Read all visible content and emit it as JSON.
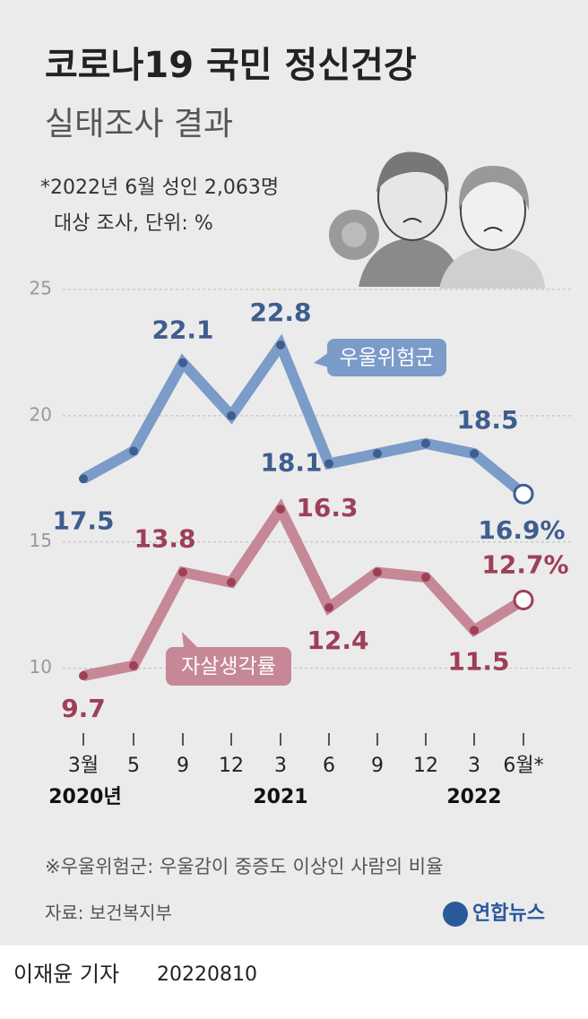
{
  "header": {
    "title": "코로나19 국민 정신건강",
    "subtitle": "실태조사 결과",
    "note": [
      "*2022년 6월 성인 2,063명",
      "대상 조사, 단위: %"
    ]
  },
  "chart_data": {
    "type": "line",
    "categories": [
      "3월",
      "5",
      "9",
      "12",
      "3",
      "6",
      "9",
      "12",
      "3",
      "6월*"
    ],
    "years": [
      "2020년",
      "2021",
      "2022"
    ],
    "ylim": [
      7.5,
      25
    ],
    "yticks": [
      10,
      15,
      20,
      25
    ],
    "grid": true,
    "series": [
      {
        "name": "우울위험군",
        "color": "#7b9bc8",
        "values": [
          17.5,
          18.6,
          22.1,
          20.0,
          22.8,
          18.1,
          18.5,
          18.9,
          18.5,
          16.9
        ],
        "value_labels": [
          "17.5",
          null,
          "22.1",
          null,
          "22.8",
          "18.1",
          null,
          null,
          "18.5",
          "16.9%"
        ]
      },
      {
        "name": "자살생각률",
        "color": "#c68797",
        "values": [
          9.7,
          10.1,
          13.8,
          13.4,
          16.3,
          12.4,
          13.8,
          13.6,
          11.5,
          12.7
        ],
        "value_labels": [
          "9.7",
          null,
          "13.8",
          null,
          "16.3",
          "12.4",
          null,
          null,
          "11.5",
          "12.7%"
        ]
      }
    ]
  },
  "footer": {
    "footnote": "※우울위험군: 우울감이 중증도 이상인 사람의 비율",
    "source": "자료: 보건복지부",
    "logo": "연합뉴스",
    "byline": "이재윤 기자",
    "date": "20220810"
  }
}
